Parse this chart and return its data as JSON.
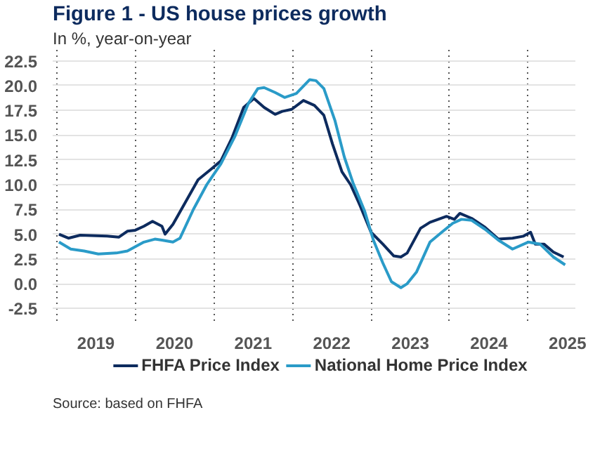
{
  "chart_data": {
    "type": "line",
    "title": "Figure 1 - US house prices growth",
    "subtitle": "In %, year-on-year",
    "annotations": [
      "Source: based on FHFA"
    ],
    "series": [
      {
        "name": "FHFA Price Index",
        "color": "#0d2b5e",
        "x": [
          2019.03,
          2019.15,
          2019.3,
          2019.64,
          2019.79,
          2019.9,
          2020.0,
          2020.11,
          2020.22,
          2020.34,
          2020.38,
          2020.48,
          2020.63,
          2020.8,
          2020.97,
          2021.09,
          2021.23,
          2021.38,
          2021.51,
          2021.64,
          2021.78,
          2021.87,
          2021.99,
          2022.14,
          2022.28,
          2022.4,
          2022.51,
          2022.63,
          2022.74,
          2022.86,
          2023.0,
          2023.15,
          2023.29,
          2023.38,
          2023.46,
          2023.63,
          2023.75,
          2023.96,
          2024.06,
          2024.13,
          2024.28,
          2024.45,
          2024.62,
          2024.8,
          2024.94,
          2025.03,
          2025.09,
          2025.2,
          2025.32,
          2025.45
        ],
        "values": [
          5.0,
          4.6,
          4.9,
          4.8,
          4.7,
          5.3,
          5.4,
          5.8,
          6.3,
          5.8,
          5.0,
          6.0,
          8.1,
          10.5,
          11.6,
          12.4,
          14.7,
          17.8,
          18.7,
          17.8,
          17.1,
          17.4,
          17.6,
          18.5,
          18.0,
          17.0,
          14.1,
          11.3,
          10.0,
          7.9,
          5.2,
          4.0,
          2.8,
          2.7,
          3.1,
          5.6,
          6.2,
          6.8,
          6.5,
          7.1,
          6.6,
          5.7,
          4.5,
          4.6,
          4.8,
          5.2,
          4.0,
          4.0,
          3.2,
          2.7
        ]
      },
      {
        "name": "National Home Price Index",
        "color": "#2a9bc8",
        "x": [
          2019.03,
          2019.18,
          2019.35,
          2019.53,
          2019.76,
          2019.9,
          2020.11,
          2020.25,
          2020.34,
          2020.48,
          2020.57,
          2020.74,
          2020.91,
          2021.09,
          2021.27,
          2021.44,
          2021.56,
          2021.64,
          2021.78,
          2021.9,
          2022.05,
          2022.22,
          2022.3,
          2022.4,
          2022.54,
          2022.66,
          2022.77,
          2022.92,
          2023.03,
          2023.15,
          2023.26,
          2023.38,
          2023.46,
          2023.58,
          2023.75,
          2023.9,
          2024.04,
          2024.15,
          2024.28,
          2024.45,
          2024.62,
          2024.8,
          2025.0,
          2025.15,
          2025.32,
          2025.47
        ],
        "values": [
          4.2,
          3.5,
          3.3,
          3.0,
          3.1,
          3.3,
          4.2,
          4.5,
          4.4,
          4.2,
          4.6,
          7.5,
          10.0,
          12.1,
          14.9,
          18.2,
          19.7,
          19.8,
          19.3,
          18.8,
          19.2,
          20.6,
          20.5,
          19.7,
          16.5,
          12.8,
          10.2,
          7.3,
          4.4,
          2.1,
          0.2,
          -0.4,
          0.0,
          1.2,
          4.2,
          5.2,
          6.1,
          6.5,
          6.4,
          5.5,
          4.4,
          3.5,
          4.2,
          4.0,
          2.7,
          1.9
        ]
      }
    ],
    "xlim": [
      2018.95,
      2025.6
    ],
    "ylim": [
      -3.75,
      23.75
    ],
    "xticks": [
      {
        "value": 2019,
        "label": null
      },
      {
        "value": 2019.5,
        "label": "2019"
      },
      {
        "value": 2020,
        "label": null
      },
      {
        "value": 2020.5,
        "label": "2020"
      },
      {
        "value": 2021,
        "label": null
      },
      {
        "value": 2021.5,
        "label": "2021"
      },
      {
        "value": 2022,
        "label": null
      },
      {
        "value": 2022.5,
        "label": "2022"
      },
      {
        "value": 2023,
        "label": null
      },
      {
        "value": 2023.5,
        "label": "2023"
      },
      {
        "value": 2024,
        "label": null
      },
      {
        "value": 2024.5,
        "label": "2024"
      },
      {
        "value": 2025,
        "label": null
      },
      {
        "value": 2025.5,
        "label": "2025"
      }
    ],
    "yticks": [
      {
        "value": -2.5,
        "label": "-2.5"
      },
      {
        "value": 0,
        "label": "0.0"
      },
      {
        "value": 2.5,
        "label": "2.5"
      },
      {
        "value": 5,
        "label": "5.0"
      },
      {
        "value": 7.5,
        "label": "7.5"
      },
      {
        "value": 10,
        "label": "10.0"
      },
      {
        "value": 12.5,
        "label": "12.5"
      },
      {
        "value": 15,
        "label": "15.0"
      },
      {
        "value": 17.5,
        "label": "17.5"
      },
      {
        "value": 20,
        "label": "20.0"
      },
      {
        "value": 22.5,
        "label": "22.5"
      }
    ],
    "grid": true,
    "legend": "bottom",
    "line_style": "solid"
  }
}
